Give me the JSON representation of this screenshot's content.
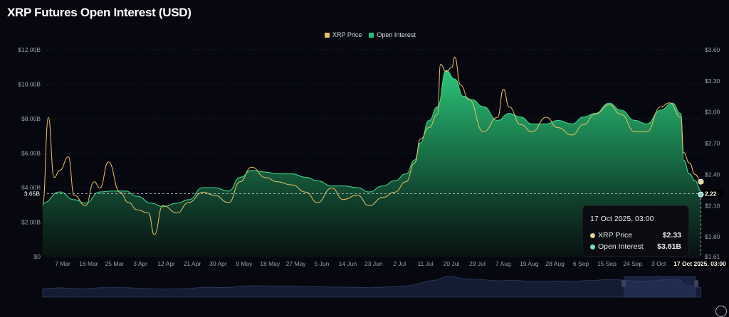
{
  "title": "XRP Futures Open Interest (USD)",
  "chart_data": {
    "type": "line",
    "title": "XRP Futures Open Interest (USD)",
    "legend": {
      "placement": "top-center",
      "entries": [
        {
          "name": "XRP Price",
          "color": "#e8c063"
        },
        {
          "name": "Open Interest",
          "color": "#22c07a"
        }
      ]
    },
    "left_axis": {
      "label": "",
      "ticks": [
        "$0",
        "$2.00B",
        "$4.00B",
        "$6.00B",
        "$8.00B",
        "$10.00B",
        "$12.00B"
      ],
      "range": [
        0,
        12
      ]
    },
    "right_axis": {
      "label": "",
      "ticks": [
        "$1.61",
        "$1.80",
        "$2.10",
        "$2.40",
        "$2.70",
        "$3.00",
        "$3.30",
        "$3.60"
      ],
      "range": [
        1.61,
        3.6
      ]
    },
    "x_ticks": [
      "7 Mar",
      "16 Mar",
      "25 Mar",
      "3 Apr",
      "12 Apr",
      "21 Apr",
      "30 Apr",
      "9 May",
      "18 May",
      "27 May",
      "5 Jun",
      "14 Jun",
      "23 Jun",
      "2 Jul",
      "11 Jul",
      "20 Jul",
      "29 Jul",
      "7 Aug",
      "19 Aug",
      "28 Aug",
      "6 Sep",
      "15 Sep",
      "24 Sep",
      "3 Oct"
    ],
    "grid": "horizontal-dotted",
    "series": [
      {
        "name": "Open Interest",
        "unit": "USD billions",
        "axis": "left",
        "x": [
          "2025-03-01",
          "2025-03-07",
          "2025-03-12",
          "2025-03-16",
          "2025-03-21",
          "2025-03-25",
          "2025-03-30",
          "2025-04-03",
          "2025-04-08",
          "2025-04-12",
          "2025-04-17",
          "2025-04-21",
          "2025-04-26",
          "2025-04-30",
          "2025-05-05",
          "2025-05-09",
          "2025-05-13",
          "2025-05-18",
          "2025-05-22",
          "2025-05-27",
          "2025-06-01",
          "2025-06-05",
          "2025-06-10",
          "2025-06-14",
          "2025-06-19",
          "2025-06-23",
          "2025-06-28",
          "2025-07-02",
          "2025-07-06",
          "2025-07-09",
          "2025-07-11",
          "2025-07-14",
          "2025-07-17",
          "2025-07-20",
          "2025-07-23",
          "2025-07-26",
          "2025-07-29",
          "2025-08-02",
          "2025-08-07",
          "2025-08-11",
          "2025-08-15",
          "2025-08-19",
          "2025-08-24",
          "2025-08-28",
          "2025-09-02",
          "2025-09-06",
          "2025-09-10",
          "2025-09-15",
          "2025-09-19",
          "2025-09-24",
          "2025-09-28",
          "2025-10-03",
          "2025-10-07",
          "2025-10-10",
          "2025-10-11",
          "2025-10-13",
          "2025-10-15",
          "2025-10-17"
        ],
        "values": [
          3.1,
          3.75,
          3.3,
          3.1,
          3.75,
          3.8,
          3.8,
          3.5,
          3.1,
          2.9,
          3.1,
          3.3,
          4.0,
          4.0,
          3.8,
          4.6,
          5.0,
          4.9,
          4.8,
          4.8,
          4.6,
          4.4,
          4.1,
          4.1,
          4.0,
          3.75,
          4.1,
          4.4,
          4.8,
          5.6,
          6.6,
          7.9,
          8.7,
          10.8,
          10.3,
          9.3,
          9.1,
          8.7,
          7.9,
          8.3,
          8.1,
          7.7,
          7.7,
          7.9,
          7.7,
          8.1,
          8.3,
          8.9,
          8.5,
          7.9,
          7.7,
          8.5,
          8.9,
          8.3,
          5.6,
          4.8,
          4.4,
          3.81
        ]
      },
      {
        "name": "XRP Price",
        "unit": "USD",
        "axis": "right",
        "x": [
          "2025-03-01",
          "2025-03-03",
          "2025-03-05",
          "2025-03-07",
          "2025-03-10",
          "2025-03-12",
          "2025-03-16",
          "2025-03-19",
          "2025-03-21",
          "2025-03-24",
          "2025-03-28",
          "2025-03-31",
          "2025-04-03",
          "2025-04-07",
          "2025-04-09",
          "2025-04-12",
          "2025-04-17",
          "2025-04-21",
          "2025-04-26",
          "2025-04-30",
          "2025-05-05",
          "2025-05-09",
          "2025-05-13",
          "2025-05-18",
          "2025-05-22",
          "2025-05-27",
          "2025-06-01",
          "2025-06-05",
          "2025-06-10",
          "2025-06-14",
          "2025-06-19",
          "2025-06-23",
          "2025-06-28",
          "2025-07-02",
          "2025-07-06",
          "2025-07-09",
          "2025-07-11",
          "2025-07-14",
          "2025-07-17",
          "2025-07-18",
          "2025-07-20",
          "2025-07-22",
          "2025-07-23",
          "2025-07-25",
          "2025-07-28",
          "2025-08-02",
          "2025-08-07",
          "2025-08-09",
          "2025-08-11",
          "2025-08-15",
          "2025-08-19",
          "2025-08-24",
          "2025-08-28",
          "2025-09-02",
          "2025-09-06",
          "2025-09-10",
          "2025-09-15",
          "2025-09-19",
          "2025-09-24",
          "2025-09-28",
          "2025-10-03",
          "2025-10-06",
          "2025-10-10",
          "2025-10-11",
          "2025-10-13",
          "2025-10-15",
          "2025-10-17"
        ],
        "values": [
          2.1,
          2.95,
          2.37,
          2.44,
          2.57,
          2.2,
          2.1,
          2.33,
          2.27,
          2.52,
          2.23,
          2.13,
          2.06,
          2.03,
          1.82,
          2.1,
          2.03,
          2.13,
          2.23,
          2.2,
          2.13,
          2.33,
          2.47,
          2.37,
          2.33,
          2.3,
          2.23,
          2.13,
          2.27,
          2.16,
          2.2,
          2.1,
          2.18,
          2.23,
          2.33,
          2.51,
          2.74,
          2.85,
          2.98,
          3.46,
          3.39,
          3.43,
          3.53,
          3.26,
          3.12,
          2.81,
          2.95,
          3.22,
          3.05,
          2.88,
          2.81,
          2.95,
          2.85,
          2.78,
          2.88,
          2.98,
          3.07,
          2.98,
          2.81,
          2.81,
          3.05,
          3.09,
          2.95,
          2.61,
          2.51,
          2.4,
          2.33
        ]
      }
    ],
    "crosshair": {
      "left_label": "3.65B",
      "right_label": "2.22",
      "x_label": "17 Oct 2025, 03:00"
    }
  },
  "tooltip": {
    "date": "17 Oct 2025, 03:00",
    "rows": [
      {
        "label": "XRP Price",
        "value": "$2.33",
        "color": "#e8d08a"
      },
      {
        "label": "Open Interest",
        "value": "$3.81B",
        "color": "#6fe0c0"
      }
    ]
  }
}
